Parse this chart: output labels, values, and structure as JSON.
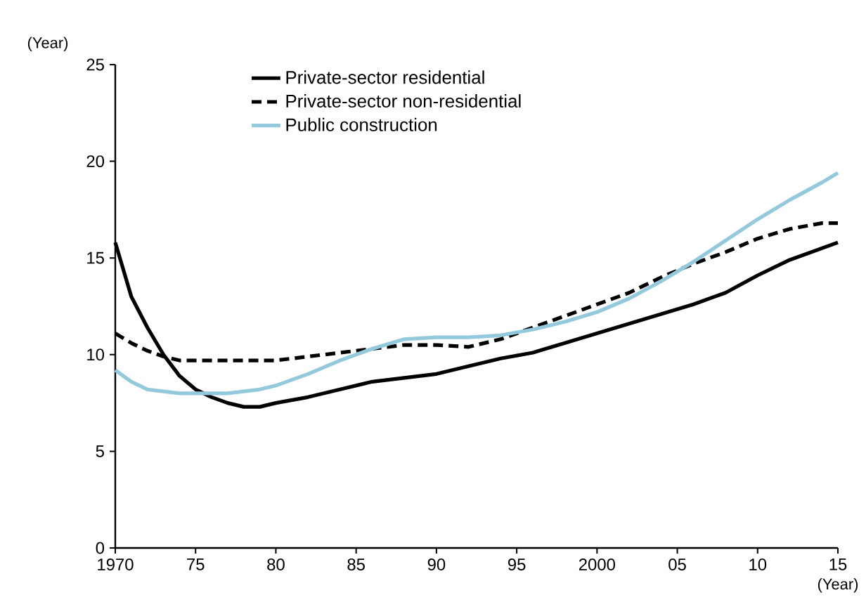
{
  "chart_data": {
    "type": "line",
    "xlabel": "(Year)",
    "ylabel": "(Year)",
    "x": [
      1970,
      1971,
      1972,
      1973,
      1974,
      1975,
      1976,
      1977,
      1978,
      1979,
      1980,
      1982,
      1984,
      1986,
      1988,
      1990,
      1992,
      1994,
      1996,
      1998,
      2000,
      2002,
      2004,
      2006,
      2008,
      2010,
      2012,
      2014,
      2015
    ],
    "series": [
      {
        "name": "Private-sector residential",
        "color": "#000000",
        "line_style": "solid",
        "values": [
          15.8,
          13.0,
          11.4,
          10.0,
          8.9,
          8.2,
          7.8,
          7.5,
          7.3,
          7.3,
          7.5,
          7.8,
          8.2,
          8.6,
          8.8,
          9.0,
          9.4,
          9.8,
          10.1,
          10.6,
          11.1,
          11.6,
          12.1,
          12.6,
          13.2,
          14.1,
          14.9,
          15.5,
          15.8
        ]
      },
      {
        "name": "Private-sector non-residential",
        "color": "#000000",
        "line_style": "dashed",
        "values": [
          11.1,
          10.6,
          10.2,
          9.9,
          9.7,
          9.7,
          9.7,
          9.7,
          9.7,
          9.7,
          9.7,
          9.9,
          10.1,
          10.3,
          10.5,
          10.5,
          10.4,
          10.8,
          11.4,
          12.0,
          12.6,
          13.2,
          14.0,
          14.7,
          15.3,
          16.0,
          16.5,
          16.8,
          16.8
        ]
      },
      {
        "name": "Public construction",
        "color": "#92c9dc",
        "line_style": "solid",
        "values": [
          9.2,
          8.6,
          8.2,
          8.1,
          8.0,
          8.0,
          8.0,
          8.0,
          8.1,
          8.2,
          8.4,
          9.0,
          9.7,
          10.3,
          10.8,
          10.9,
          10.9,
          11.0,
          11.3,
          11.7,
          12.2,
          12.9,
          13.8,
          14.8,
          15.9,
          17.0,
          18.0,
          18.9,
          19.4
        ]
      }
    ],
    "xlim": [
      1970,
      2015
    ],
    "xticks": [
      1970,
      {
        "value": 1975,
        "label": "75"
      },
      {
        "value": 1980,
        "label": "80"
      },
      {
        "value": 1985,
        "label": "85"
      },
      {
        "value": 1990,
        "label": "90"
      },
      {
        "value": 1995,
        "label": "95"
      },
      2000,
      {
        "value": 2005,
        "label": "05"
      },
      {
        "value": 2010,
        "label": "10"
      },
      {
        "value": 2015,
        "label": "15"
      }
    ],
    "ylim": [
      0,
      25
    ],
    "yticks": [
      0,
      5,
      10,
      15,
      20,
      25
    ],
    "grid": false,
    "legend": "top"
  }
}
